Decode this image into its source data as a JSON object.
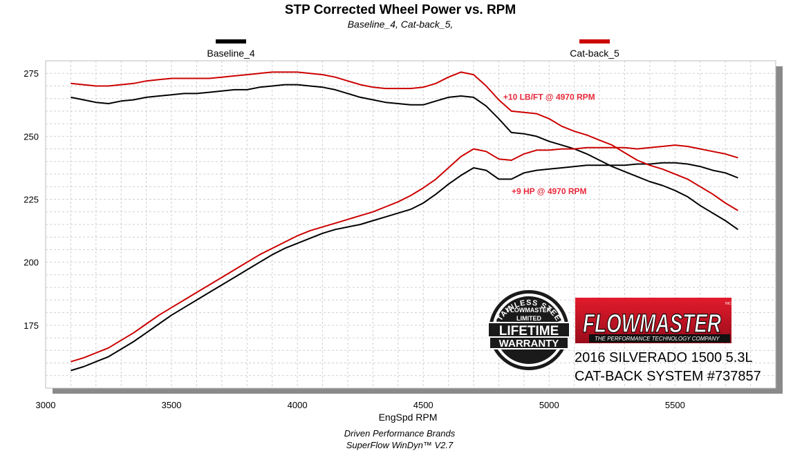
{
  "chart_data": {
    "type": "line",
    "title": "STP Corrected Wheel Power vs. RPM",
    "subtitle": "Baseline_4, Cat-back_5,",
    "xlabel": "EngSpd  RPM",
    "ylabel": "",
    "xlim": [
      3000,
      5900
    ],
    "ylim": [
      150,
      280
    ],
    "x_ticks": [
      "3000",
      "3500",
      "4000",
      "4500",
      "5000",
      "5500"
    ],
    "y_ticks": [
      "175",
      "200",
      "225",
      "250",
      "275"
    ],
    "grid": true,
    "legend_position": "top",
    "legend": [
      {
        "name": "Baseline_4",
        "color": "#000000"
      },
      {
        "name": "Cat-back_5",
        "color": "#cc0000"
      }
    ],
    "series": [
      {
        "name": "Baseline_4",
        "measure": "torque",
        "color": "#000000",
        "points": [
          [
            3100,
            265.5
          ],
          [
            3150,
            264.5
          ],
          [
            3200,
            263.5
          ],
          [
            3250,
            263
          ],
          [
            3300,
            264
          ],
          [
            3350,
            264.5
          ],
          [
            3400,
            265.5
          ],
          [
            3450,
            266
          ],
          [
            3500,
            266.5
          ],
          [
            3550,
            267
          ],
          [
            3600,
            267
          ],
          [
            3650,
            267.5
          ],
          [
            3700,
            268
          ],
          [
            3750,
            268.5
          ],
          [
            3800,
            268.5
          ],
          [
            3850,
            269.5
          ],
          [
            3900,
            270
          ],
          [
            3950,
            270.5
          ],
          [
            4000,
            270.5
          ],
          [
            4050,
            270
          ],
          [
            4100,
            269.5
          ],
          [
            4150,
            268.5
          ],
          [
            4200,
            267
          ],
          [
            4250,
            265.5
          ],
          [
            4300,
            264.5
          ],
          [
            4350,
            263.5
          ],
          [
            4400,
            263
          ],
          [
            4450,
            262.5
          ],
          [
            4500,
            262.5
          ],
          [
            4550,
            264
          ],
          [
            4600,
            265.5
          ],
          [
            4650,
            266
          ],
          [
            4700,
            265.5
          ],
          [
            4750,
            262
          ],
          [
            4800,
            257
          ],
          [
            4850,
            251.5
          ],
          [
            4900,
            251
          ],
          [
            4950,
            250
          ],
          [
            5000,
            248
          ],
          [
            5050,
            246.5
          ],
          [
            5100,
            245
          ],
          [
            5150,
            243
          ],
          [
            5200,
            240.5
          ],
          [
            5250,
            238
          ],
          [
            5300,
            236
          ],
          [
            5350,
            234
          ],
          [
            5400,
            232
          ],
          [
            5450,
            230.5
          ],
          [
            5500,
            228.5
          ],
          [
            5550,
            226
          ],
          [
            5600,
            222.5
          ],
          [
            5650,
            219.5
          ],
          [
            5700,
            216.5
          ],
          [
            5750,
            213
          ]
        ]
      },
      {
        "name": "Baseline_4",
        "measure": "power",
        "color": "#000000",
        "points": [
          [
            3100,
            157
          ],
          [
            3150,
            158.5
          ],
          [
            3200,
            160.5
          ],
          [
            3250,
            162.5
          ],
          [
            3300,
            165.5
          ],
          [
            3350,
            168.5
          ],
          [
            3400,
            172
          ],
          [
            3450,
            175.5
          ],
          [
            3500,
            179
          ],
          [
            3550,
            182
          ],
          [
            3600,
            185
          ],
          [
            3650,
            188
          ],
          [
            3700,
            191
          ],
          [
            3750,
            194
          ],
          [
            3800,
            197
          ],
          [
            3850,
            200
          ],
          [
            3900,
            203
          ],
          [
            3950,
            205.5
          ],
          [
            4000,
            207.5
          ],
          [
            4050,
            209.5
          ],
          [
            4100,
            211.5
          ],
          [
            4150,
            213
          ],
          [
            4200,
            214
          ],
          [
            4250,
            215
          ],
          [
            4300,
            216.5
          ],
          [
            4350,
            218
          ],
          [
            4400,
            219.5
          ],
          [
            4450,
            221
          ],
          [
            4500,
            223.5
          ],
          [
            4550,
            227
          ],
          [
            4600,
            231
          ],
          [
            4650,
            234.5
          ],
          [
            4700,
            237.5
          ],
          [
            4750,
            236.5
          ],
          [
            4800,
            233
          ],
          [
            4850,
            233
          ],
          [
            4900,
            235.5
          ],
          [
            4950,
            236.5
          ],
          [
            5000,
            237
          ],
          [
            5050,
            237.5
          ],
          [
            5100,
            238
          ],
          [
            5150,
            238.5
          ],
          [
            5200,
            238.5
          ],
          [
            5250,
            238.5
          ],
          [
            5300,
            238.5
          ],
          [
            5350,
            239
          ],
          [
            5400,
            239
          ],
          [
            5450,
            239.5
          ],
          [
            5500,
            239.5
          ],
          [
            5550,
            239
          ],
          [
            5600,
            238
          ],
          [
            5650,
            236.5
          ],
          [
            5700,
            235.5
          ],
          [
            5750,
            233.5
          ]
        ]
      },
      {
        "name": "Cat-back_5",
        "measure": "torque",
        "color": "#cc0000",
        "points": [
          [
            3100,
            271
          ],
          [
            3150,
            270.5
          ],
          [
            3200,
            270
          ],
          [
            3250,
            270
          ],
          [
            3300,
            270.5
          ],
          [
            3350,
            271
          ],
          [
            3400,
            272
          ],
          [
            3450,
            272.5
          ],
          [
            3500,
            273
          ],
          [
            3550,
            273
          ],
          [
            3600,
            273
          ],
          [
            3650,
            273
          ],
          [
            3700,
            273.5
          ],
          [
            3750,
            274
          ],
          [
            3800,
            274.5
          ],
          [
            3850,
            275
          ],
          [
            3900,
            275.5
          ],
          [
            3950,
            275.5
          ],
          [
            4000,
            275.5
          ],
          [
            4050,
            275
          ],
          [
            4100,
            274.5
          ],
          [
            4150,
            273.5
          ],
          [
            4200,
            272
          ],
          [
            4250,
            270.5
          ],
          [
            4300,
            269.5
          ],
          [
            4350,
            269
          ],
          [
            4400,
            269
          ],
          [
            4450,
            269
          ],
          [
            4500,
            269.5
          ],
          [
            4550,
            271
          ],
          [
            4600,
            273.5
          ],
          [
            4650,
            275.5
          ],
          [
            4700,
            274.5
          ],
          [
            4750,
            270
          ],
          [
            4800,
            264.5
          ],
          [
            4850,
            260
          ],
          [
            4900,
            259.5
          ],
          [
            4950,
            259
          ],
          [
            5000,
            257
          ],
          [
            5050,
            254
          ],
          [
            5100,
            252
          ],
          [
            5150,
            250.5
          ],
          [
            5200,
            248.5
          ],
          [
            5250,
            246.5
          ],
          [
            5300,
            243.5
          ],
          [
            5350,
            240.5
          ],
          [
            5400,
            238.5
          ],
          [
            5450,
            237
          ],
          [
            5500,
            235
          ],
          [
            5550,
            233
          ],
          [
            5600,
            230
          ],
          [
            5650,
            227
          ],
          [
            5700,
            223.5
          ],
          [
            5750,
            220.5
          ]
        ]
      },
      {
        "name": "Cat-back_5",
        "measure": "power",
        "color": "#cc0000",
        "points": [
          [
            3100,
            160.5
          ],
          [
            3150,
            162
          ],
          [
            3200,
            164
          ],
          [
            3250,
            166
          ],
          [
            3300,
            169
          ],
          [
            3350,
            172
          ],
          [
            3400,
            175.5
          ],
          [
            3450,
            179
          ],
          [
            3500,
            182
          ],
          [
            3550,
            185
          ],
          [
            3600,
            188
          ],
          [
            3650,
            191
          ],
          [
            3700,
            194
          ],
          [
            3750,
            197
          ],
          [
            3800,
            200
          ],
          [
            3850,
            203
          ],
          [
            3900,
            205.5
          ],
          [
            3950,
            208
          ],
          [
            4000,
            210.5
          ],
          [
            4050,
            212.5
          ],
          [
            4100,
            214
          ],
          [
            4150,
            215.5
          ],
          [
            4200,
            217
          ],
          [
            4250,
            218.5
          ],
          [
            4300,
            220
          ],
          [
            4350,
            222
          ],
          [
            4400,
            224
          ],
          [
            4450,
            226.5
          ],
          [
            4500,
            229.5
          ],
          [
            4550,
            233
          ],
          [
            4600,
            237.5
          ],
          [
            4650,
            242
          ],
          [
            4700,
            245
          ],
          [
            4750,
            244
          ],
          [
            4800,
            241
          ],
          [
            4850,
            240.5
          ],
          [
            4900,
            243
          ],
          [
            4950,
            244.5
          ],
          [
            5000,
            244.5
          ],
          [
            5050,
            245
          ],
          [
            5100,
            245
          ],
          [
            5150,
            245.5
          ],
          [
            5200,
            245.5
          ],
          [
            5250,
            245.5
          ],
          [
            5300,
            245.5
          ],
          [
            5350,
            245
          ],
          [
            5400,
            245.5
          ],
          [
            5450,
            246
          ],
          [
            5500,
            246.5
          ],
          [
            5550,
            246
          ],
          [
            5600,
            245
          ],
          [
            5650,
            244
          ],
          [
            5700,
            243
          ],
          [
            5750,
            241.5
          ]
        ]
      }
    ],
    "annotations": [
      {
        "text": "+10 LB/FT @ 4970 RPM",
        "x": 5000,
        "y": 264.5
      },
      {
        "text": "+9 HP @ 4970 RPM",
        "x": 5000,
        "y": 227
      }
    ],
    "footer": [
      "Driven Performance Brands",
      "SuperFlow WinDyn™ V2.7"
    ]
  },
  "branding": {
    "badge_top": "STAINLESS STEEL",
    "badge_brand": "FLOWMASTER",
    "badge_limited": "LIMITED",
    "badge_line1": "LIFETIME",
    "badge_line2": "WARRANTY",
    "logo_text": "FLOWMASTER",
    "logo_inc": "INC.",
    "logo_tagline": "THE PERFORMANCE TECHNOLOGY COMPANY",
    "logo_color": "#c8102e",
    "vehicle_line1": "2016 SILVERADO 1500 5.3L",
    "vehicle_line2": "CAT-BACK SYSTEM #737857"
  }
}
